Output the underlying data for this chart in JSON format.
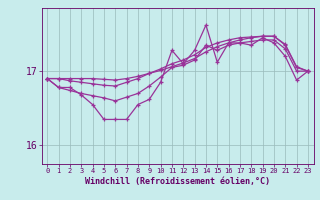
{
  "xlabel": "Windchill (Refroidissement éolien,°C)",
  "background_color": "#c8ecec",
  "line_color": "#993399",
  "grid_color": "#99bbbb",
  "text_color": "#660066",
  "x": [
    0,
    1,
    2,
    3,
    4,
    5,
    6,
    7,
    8,
    9,
    10,
    11,
    12,
    13,
    14,
    15,
    16,
    17,
    18,
    19,
    20,
    21,
    22,
    23
  ],
  "y_volatile": [
    16.9,
    16.78,
    16.78,
    16.68,
    16.55,
    16.35,
    16.35,
    16.35,
    16.55,
    16.62,
    16.85,
    17.28,
    17.1,
    17.28,
    17.62,
    17.12,
    17.38,
    17.38,
    17.35,
    17.45,
    17.38,
    17.2,
    16.88,
    17.0
  ],
  "y_line2": [
    16.9,
    16.78,
    16.74,
    16.7,
    16.67,
    16.64,
    16.6,
    16.65,
    16.7,
    16.8,
    16.92,
    17.05,
    17.08,
    17.15,
    17.35,
    17.28,
    17.35,
    17.38,
    17.4,
    17.42,
    17.42,
    17.3,
    17.0,
    17.0
  ],
  "y_line3": [
    16.9,
    16.9,
    16.87,
    16.85,
    16.83,
    16.81,
    16.8,
    16.85,
    16.9,
    16.97,
    17.03,
    17.1,
    17.15,
    17.22,
    17.32,
    17.38,
    17.42,
    17.45,
    17.46,
    17.47,
    17.47,
    17.35,
    17.05,
    17.0
  ],
  "y_line4": [
    16.9,
    16.9,
    16.9,
    16.9,
    16.9,
    16.89,
    16.88,
    16.9,
    16.93,
    16.97,
    17.01,
    17.06,
    17.11,
    17.17,
    17.26,
    17.33,
    17.38,
    17.42,
    17.45,
    17.47,
    17.47,
    17.36,
    17.06,
    17.0
  ],
  "ylim": [
    15.75,
    17.85
  ],
  "xlim": [
    -0.5,
    23.5
  ],
  "yticks": [
    16,
    17
  ],
  "xticks": [
    0,
    1,
    2,
    3,
    4,
    5,
    6,
    7,
    8,
    9,
    10,
    11,
    12,
    13,
    14,
    15,
    16,
    17,
    18,
    19,
    20,
    21,
    22,
    23
  ]
}
